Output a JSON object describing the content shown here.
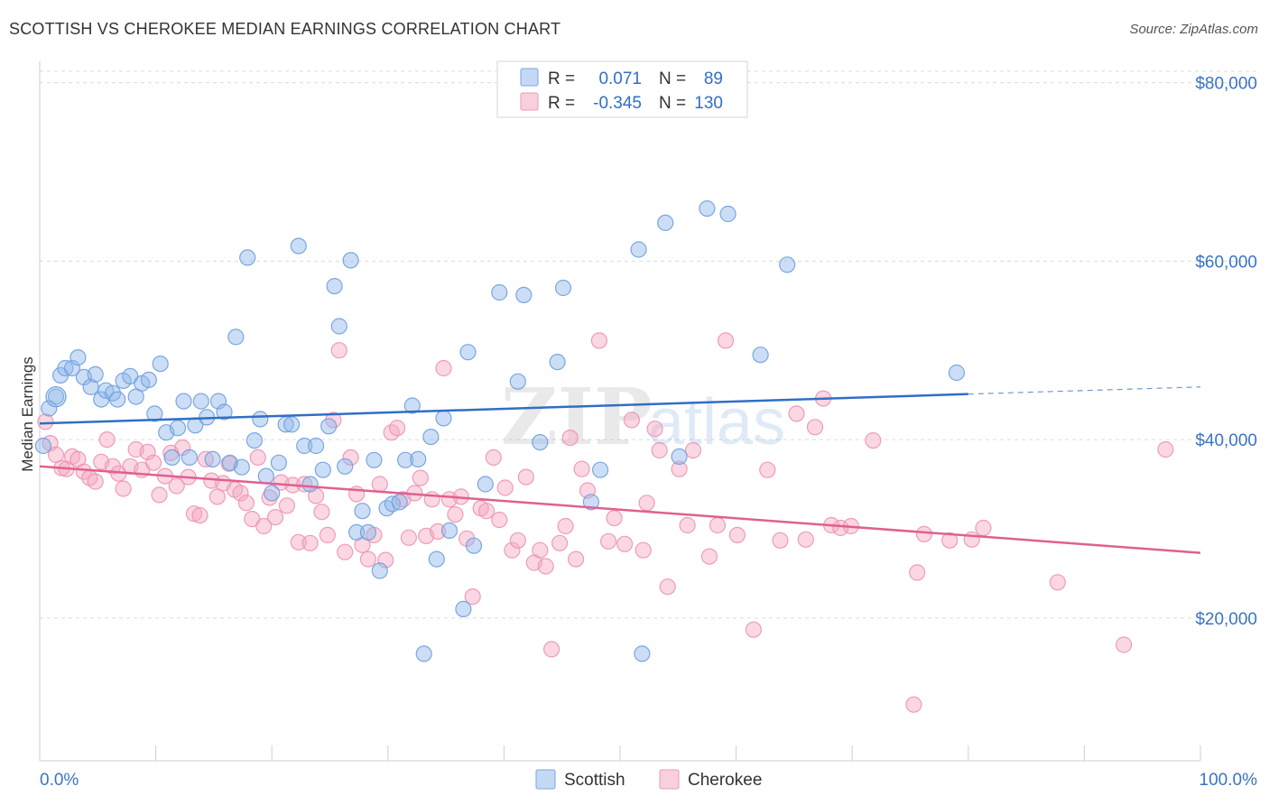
{
  "header": {
    "title": "SCOTTISH VS CHEROKEE MEDIAN EARNINGS CORRELATION CHART",
    "source": "Source: ZipAtlas.com"
  },
  "watermark": "ZIPatlas",
  "legend": {
    "r_label": "R =",
    "n_label": "N =",
    "rows": [
      {
        "r": "0.071",
        "n": "89"
      },
      {
        "r": "-0.345",
        "n": "130"
      }
    ]
  },
  "chart_data": {
    "type": "scatter",
    "title": "SCOTTISH VS CHEROKEE MEDIAN EARNINGS CORRELATION CHART",
    "xlabel": "",
    "ylabel": "Median Earnings",
    "xlim": [
      0,
      100
    ],
    "ylim": [
      4000,
      83000
    ],
    "x_tick_labels": [
      "0.0%",
      "100.0%"
    ],
    "y_ticks": [
      20000,
      40000,
      60000,
      80000
    ],
    "y_tick_labels": [
      "$20,000",
      "$40,000",
      "$60,000",
      "$80,000"
    ],
    "grid": true,
    "legend_position": "top-center",
    "series": [
      {
        "name": "Scottish",
        "color": "#8fb6e8",
        "line_color": "#2f6fc7",
        "r": 0.071,
        "n": 89,
        "trend": {
          "x": [
            0,
            80,
            100
          ],
          "y": [
            41800,
            45100,
            45900
          ],
          "solid_until": 80
        },
        "points": [
          [
            0.3,
            39300
          ],
          [
            0.8,
            43500
          ],
          [
            1.4,
            44800
          ],
          [
            1.8,
            47200
          ],
          [
            2.2,
            48000
          ],
          [
            2.8,
            48000
          ],
          [
            3.3,
            49200
          ],
          [
            3.8,
            47000
          ],
          [
            4.4,
            45900
          ],
          [
            4.8,
            47300
          ],
          [
            5.3,
            44500
          ],
          [
            5.7,
            45500
          ],
          [
            6.3,
            45200
          ],
          [
            6.7,
            44500
          ],
          [
            7.2,
            46600
          ],
          [
            7.8,
            47100
          ],
          [
            8.3,
            44800
          ],
          [
            8.8,
            46300
          ],
          [
            9.4,
            46700
          ],
          [
            9.9,
            42900
          ],
          [
            10.4,
            48500
          ],
          [
            10.9,
            40800
          ],
          [
            11.4,
            38000
          ],
          [
            11.9,
            41300
          ],
          [
            12.4,
            44300
          ],
          [
            12.9,
            38000
          ],
          [
            13.4,
            41600
          ],
          [
            13.9,
            44300
          ],
          [
            14.4,
            42500
          ],
          [
            14.9,
            37800
          ],
          [
            15.4,
            44300
          ],
          [
            15.9,
            43100
          ],
          [
            16.4,
            37400
          ],
          [
            16.9,
            51500
          ],
          [
            17.4,
            36900
          ],
          [
            17.9,
            60400
          ],
          [
            18.5,
            39900
          ],
          [
            19.0,
            42300
          ],
          [
            19.5,
            35900
          ],
          [
            20.0,
            34000
          ],
          [
            20.6,
            37400
          ],
          [
            21.2,
            41700
          ],
          [
            21.7,
            41700
          ],
          [
            22.3,
            61700
          ],
          [
            22.8,
            39300
          ],
          [
            23.3,
            35000
          ],
          [
            23.8,
            39300
          ],
          [
            24.4,
            36600
          ],
          [
            24.9,
            41500
          ],
          [
            25.4,
            57200
          ],
          [
            25.8,
            52700
          ],
          [
            26.3,
            37000
          ],
          [
            26.8,
            60100
          ],
          [
            27.3,
            29600
          ],
          [
            27.8,
            32000
          ],
          [
            28.3,
            29600
          ],
          [
            28.8,
            37700
          ],
          [
            29.3,
            25300
          ],
          [
            29.9,
            32300
          ],
          [
            30.4,
            32800
          ],
          [
            31.0,
            33000
          ],
          [
            31.5,
            37700
          ],
          [
            32.1,
            43800
          ],
          [
            32.6,
            37800
          ],
          [
            33.1,
            16000
          ],
          [
            33.7,
            40300
          ],
          [
            34.2,
            26600
          ],
          [
            34.8,
            42400
          ],
          [
            35.3,
            29800
          ],
          [
            36.5,
            21000
          ],
          [
            36.9,
            49800
          ],
          [
            37.4,
            28100
          ],
          [
            38.4,
            35000
          ],
          [
            39.6,
            56500
          ],
          [
            41.2,
            46500
          ],
          [
            41.7,
            56200
          ],
          [
            43.1,
            39700
          ],
          [
            44.6,
            48700
          ],
          [
            45.1,
            57000
          ],
          [
            47.5,
            33000
          ],
          [
            48.3,
            36600
          ],
          [
            51.6,
            61300
          ],
          [
            51.9,
            16000
          ],
          [
            53.9,
            64300
          ],
          [
            55.1,
            38100
          ],
          [
            57.5,
            65900
          ],
          [
            59.3,
            65300
          ],
          [
            62.1,
            49500
          ],
          [
            64.4,
            59600
          ],
          [
            79.0,
            47500
          ]
        ]
      },
      {
        "name": "Cherokee",
        "color": "#f4a6c0",
        "line_color": "#e0608f",
        "r": -0.345,
        "n": 130,
        "trend": {
          "x": [
            0,
            100
          ],
          "y": [
            37000,
            27300
          ]
        },
        "points": [
          [
            0.5,
            42000
          ],
          [
            0.9,
            39600
          ],
          [
            1.4,
            38300
          ],
          [
            1.9,
            36800
          ],
          [
            2.3,
            36700
          ],
          [
            2.8,
            38100
          ],
          [
            3.3,
            37800
          ],
          [
            3.8,
            36400
          ],
          [
            4.3,
            35700
          ],
          [
            4.8,
            35300
          ],
          [
            5.3,
            37500
          ],
          [
            5.8,
            40000
          ],
          [
            6.3,
            37000
          ],
          [
            6.8,
            36200
          ],
          [
            7.2,
            34500
          ],
          [
            7.8,
            37000
          ],
          [
            8.3,
            38900
          ],
          [
            8.8,
            36600
          ],
          [
            9.3,
            38600
          ],
          [
            9.8,
            37400
          ],
          [
            10.3,
            33800
          ],
          [
            10.8,
            35900
          ],
          [
            11.3,
            38500
          ],
          [
            11.8,
            34800
          ],
          [
            12.3,
            39100
          ],
          [
            12.8,
            35800
          ],
          [
            13.3,
            31700
          ],
          [
            13.8,
            31500
          ],
          [
            14.3,
            37800
          ],
          [
            14.8,
            35400
          ],
          [
            15.3,
            33600
          ],
          [
            15.8,
            35100
          ],
          [
            16.3,
            37300
          ],
          [
            16.8,
            34400
          ],
          [
            17.3,
            34000
          ],
          [
            17.8,
            32900
          ],
          [
            18.3,
            31100
          ],
          [
            18.8,
            38000
          ],
          [
            19.3,
            30300
          ],
          [
            19.8,
            33500
          ],
          [
            20.3,
            31300
          ],
          [
            20.8,
            35200
          ],
          [
            21.3,
            32600
          ],
          [
            21.8,
            34900
          ],
          [
            22.3,
            28500
          ],
          [
            22.8,
            35000
          ],
          [
            23.3,
            28400
          ],
          [
            23.8,
            33700
          ],
          [
            24.3,
            31900
          ],
          [
            24.8,
            29300
          ],
          [
            25.3,
            42200
          ],
          [
            25.8,
            50000
          ],
          [
            26.3,
            27400
          ],
          [
            26.8,
            38000
          ],
          [
            27.3,
            33900
          ],
          [
            27.8,
            28200
          ],
          [
            28.3,
            26600
          ],
          [
            28.8,
            29300
          ],
          [
            29.3,
            35000
          ],
          [
            29.8,
            26500
          ],
          [
            30.3,
            40800
          ],
          [
            30.8,
            41300
          ],
          [
            31.3,
            33300
          ],
          [
            31.8,
            29000
          ],
          [
            32.3,
            34000
          ],
          [
            32.8,
            35700
          ],
          [
            33.3,
            29200
          ],
          [
            33.8,
            33300
          ],
          [
            34.3,
            29700
          ],
          [
            34.8,
            48000
          ],
          [
            35.3,
            33300
          ],
          [
            35.8,
            31600
          ],
          [
            36.3,
            33600
          ],
          [
            36.8,
            28900
          ],
          [
            37.3,
            22400
          ],
          [
            38.0,
            32300
          ],
          [
            38.5,
            32000
          ],
          [
            39.1,
            38000
          ],
          [
            39.6,
            31000
          ],
          [
            40.1,
            34600
          ],
          [
            40.7,
            27600
          ],
          [
            41.2,
            28700
          ],
          [
            41.9,
            35800
          ],
          [
            42.6,
            26200
          ],
          [
            43.1,
            27600
          ],
          [
            43.6,
            25800
          ],
          [
            44.1,
            16500
          ],
          [
            44.8,
            28400
          ],
          [
            45.3,
            30300
          ],
          [
            45.7,
            40200
          ],
          [
            46.2,
            26600
          ],
          [
            46.7,
            36700
          ],
          [
            47.2,
            34300
          ],
          [
            48.2,
            51100
          ],
          [
            49.5,
            31200
          ],
          [
            49.0,
            28600
          ],
          [
            50.4,
            28300
          ],
          [
            51.0,
            42200
          ],
          [
            52.0,
            27600
          ],
          [
            52.3,
            32900
          ],
          [
            53.0,
            41200
          ],
          [
            53.4,
            38800
          ],
          [
            54.1,
            23500
          ],
          [
            55.1,
            36700
          ],
          [
            55.8,
            30400
          ],
          [
            56.3,
            38800
          ],
          [
            57.7,
            26900
          ],
          [
            58.4,
            30400
          ],
          [
            59.1,
            51100
          ],
          [
            60.1,
            29300
          ],
          [
            61.5,
            18700
          ],
          [
            62.7,
            36600
          ],
          [
            63.8,
            28700
          ],
          [
            65.2,
            42900
          ],
          [
            66.0,
            28800
          ],
          [
            66.8,
            41400
          ],
          [
            67.5,
            44600
          ],
          [
            68.2,
            30400
          ],
          [
            69.0,
            30100
          ],
          [
            69.9,
            30300
          ],
          [
            71.8,
            39900
          ],
          [
            75.3,
            10300
          ],
          [
            75.6,
            25100
          ],
          [
            76.2,
            29400
          ],
          [
            78.4,
            28700
          ],
          [
            80.3,
            28800
          ],
          [
            81.3,
            30100
          ],
          [
            87.7,
            24000
          ],
          [
            93.4,
            17000
          ],
          [
            97.0,
            38900
          ]
        ]
      }
    ]
  }
}
